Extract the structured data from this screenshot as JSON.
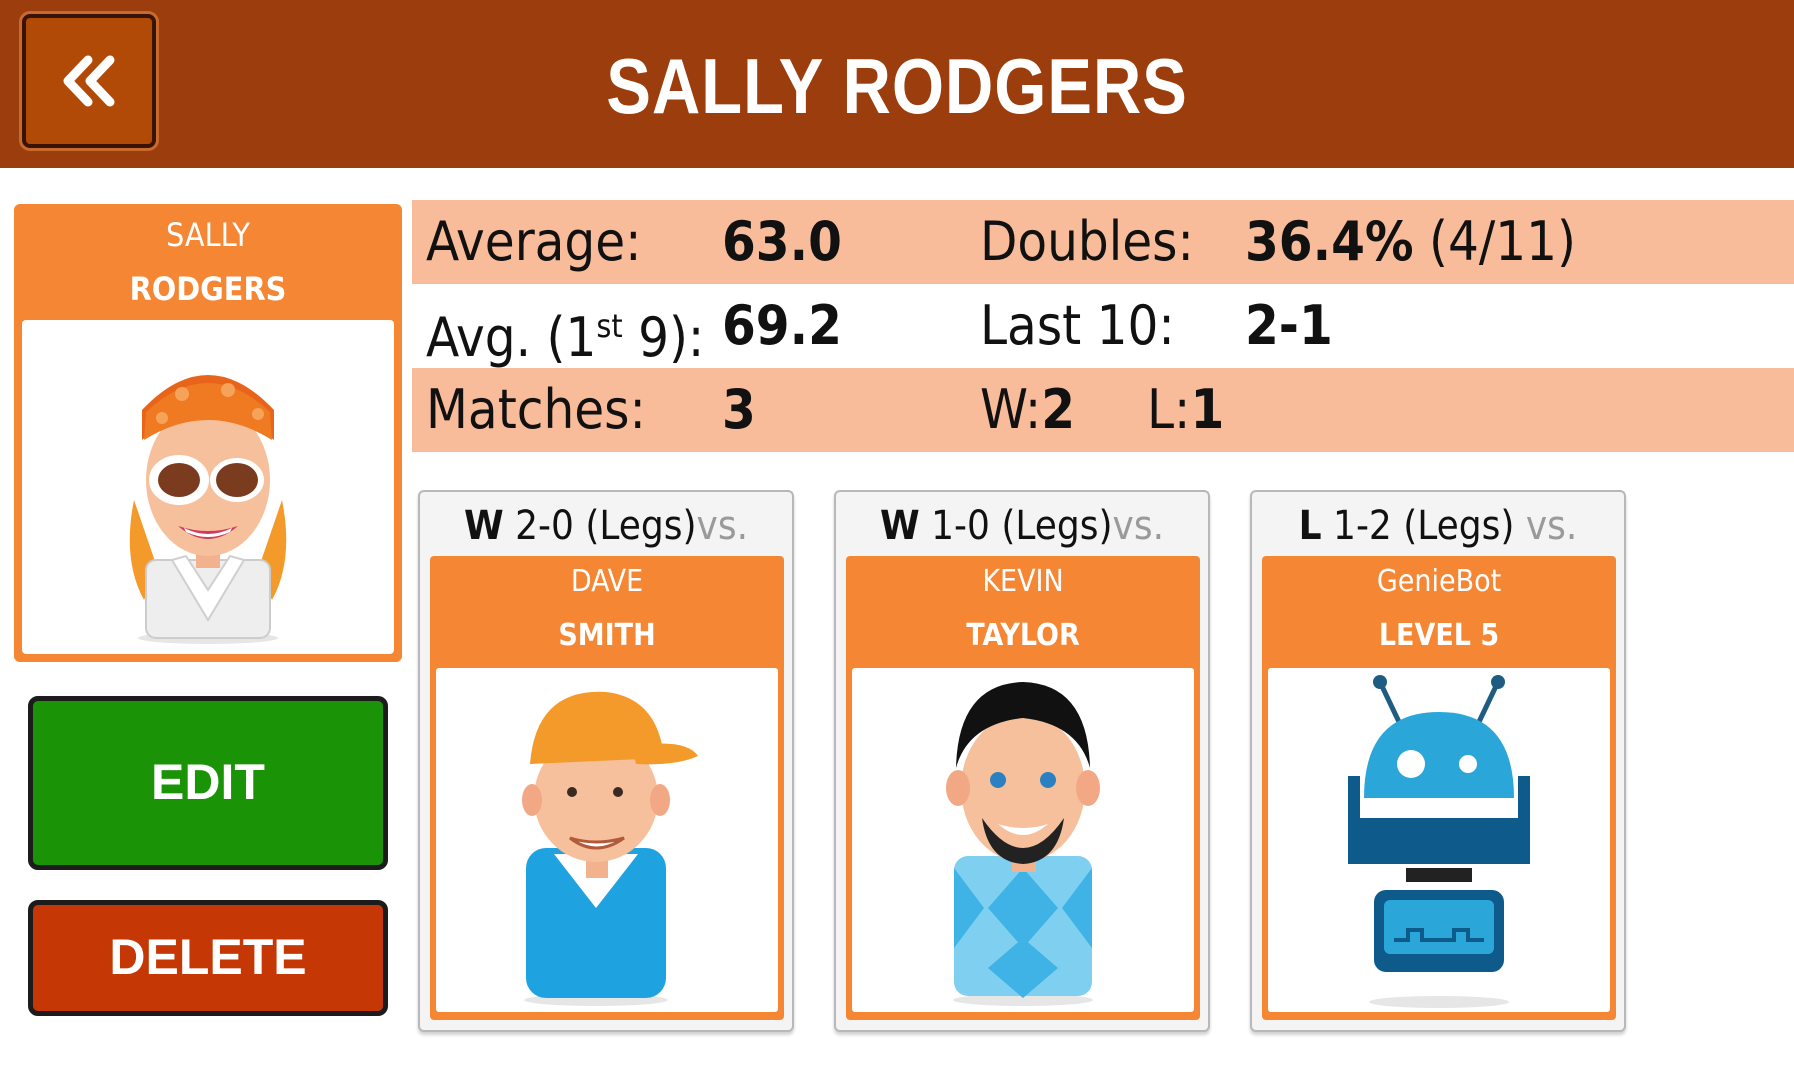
{
  "header": {
    "title": "SALLY RODGERS",
    "back_icon": "double-chevron-left-icon",
    "color": "#9b3d0c"
  },
  "profile": {
    "first_name": "SALLY",
    "last_name": "RODGERS",
    "avatar_icon": "woman-sunglasses-avatar-icon"
  },
  "actions": {
    "edit_label": "EDIT",
    "delete_label": "DELETE",
    "edit_color": "#1a9307",
    "delete_color": "#c53805"
  },
  "stats": {
    "average_label": "Average:",
    "average_value": "63.0",
    "doubles_label": "Doubles:",
    "doubles_value": "36.4%",
    "doubles_fraction": "(4/11)",
    "avg_first9_label_prefix": "Avg. (1",
    "avg_first9_label_sup": "st",
    "avg_first9_label_suffix": " 9):",
    "avg_first9_value": "69.2",
    "last10_label": "Last 10:",
    "last10_value": "2-1",
    "matches_label": "Matches:",
    "matches_value": "3",
    "wins_label": "W:",
    "wins_value": "2",
    "losses_label": "L:",
    "losses_value": "1",
    "band_color": "#f9bc9a"
  },
  "matches": [
    {
      "result": "W",
      "score": "2-0 (Legs)",
      "vs": "vs.",
      "opponent_first": "DAVE",
      "opponent_last": "SMITH",
      "avatar_icon": "man-orange-cap-avatar-icon"
    },
    {
      "result": "W",
      "score": "1-0 (Legs)",
      "vs": "vs.",
      "opponent_first": "KEVIN",
      "opponent_last": "TAYLOR",
      "avatar_icon": "man-goatee-avatar-icon"
    },
    {
      "result": "L",
      "score": "1-2 (Legs)",
      "vs": "vs.",
      "opponent_first": "GenieBot",
      "opponent_last": "LEVEL 5",
      "avatar_icon": "robot-avatar-icon"
    }
  ]
}
